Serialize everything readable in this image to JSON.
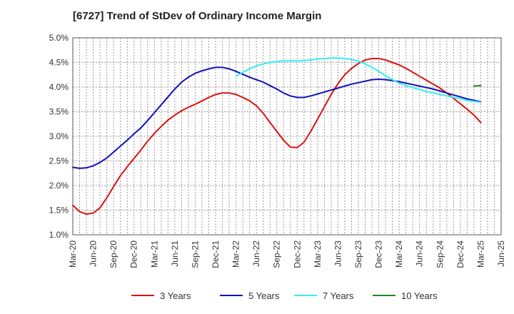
{
  "chart_data": {
    "type": "line",
    "title": "[6727]  Trend of StDev of Ordinary Income Margin",
    "xlabel": "",
    "ylabel": "",
    "ylim": [
      1.0,
      5.0
    ],
    "y_ticks": [
      "1.0%",
      "1.5%",
      "2.0%",
      "2.5%",
      "3.0%",
      "3.5%",
      "4.0%",
      "4.5%",
      "5.0%"
    ],
    "x_ticks": [
      "Mar-20",
      "Jun-20",
      "Sep-20",
      "Dec-20",
      "Mar-21",
      "Jun-21",
      "Sep-21",
      "Dec-21",
      "Mar-22",
      "Jun-22",
      "Sep-22",
      "Dec-22",
      "Mar-23",
      "Jun-23",
      "Sep-23",
      "Dec-23",
      "Mar-24",
      "Jun-24",
      "Sep-24",
      "Dec-24",
      "Mar-25",
      "Jun-25"
    ],
    "grid": true,
    "legend_position": "bottom",
    "series": [
      {
        "name": "3 Years",
        "color": "#dd1111",
        "points": [
          [
            "Mar-20",
            1.6
          ],
          [
            "Apr-20",
            1.47
          ],
          [
            "May-20",
            1.42
          ],
          [
            "Jun-20",
            1.44
          ],
          [
            "Jul-20",
            1.55
          ],
          [
            "Aug-20",
            1.75
          ],
          [
            "Sep-20",
            1.98
          ],
          [
            "Oct-20",
            2.2
          ],
          [
            "Nov-20",
            2.38
          ],
          [
            "Dec-20",
            2.55
          ],
          [
            "Jan-21",
            2.72
          ],
          [
            "Feb-21",
            2.9
          ],
          [
            "Mar-21",
            3.06
          ],
          [
            "Apr-21",
            3.2
          ],
          [
            "May-21",
            3.33
          ],
          [
            "Jun-21",
            3.43
          ],
          [
            "Jul-21",
            3.52
          ],
          [
            "Aug-21",
            3.59
          ],
          [
            "Sep-21",
            3.65
          ],
          [
            "Oct-21",
            3.72
          ],
          [
            "Nov-21",
            3.79
          ],
          [
            "Dec-21",
            3.85
          ],
          [
            "Jan-22",
            3.88
          ],
          [
            "Feb-22",
            3.88
          ],
          [
            "Mar-22",
            3.85
          ],
          [
            "Apr-22",
            3.79
          ],
          [
            "May-22",
            3.72
          ],
          [
            "Jun-22",
            3.62
          ],
          [
            "Jul-22",
            3.47
          ],
          [
            "Aug-22",
            3.28
          ],
          [
            "Sep-22",
            3.1
          ],
          [
            "Oct-22",
            2.92
          ],
          [
            "Nov-22",
            2.78
          ],
          [
            "Dec-22",
            2.77
          ],
          [
            "Jan-23",
            2.88
          ],
          [
            "Feb-23",
            3.1
          ],
          [
            "Mar-23",
            3.35
          ],
          [
            "Apr-23",
            3.6
          ],
          [
            "May-23",
            3.85
          ],
          [
            "Jun-23",
            4.07
          ],
          [
            "Jul-23",
            4.25
          ],
          [
            "Aug-23",
            4.38
          ],
          [
            "Sep-23",
            4.48
          ],
          [
            "Oct-23",
            4.55
          ],
          [
            "Nov-23",
            4.58
          ],
          [
            "Dec-23",
            4.58
          ],
          [
            "Jan-24",
            4.55
          ],
          [
            "Feb-24",
            4.5
          ],
          [
            "Mar-24",
            4.45
          ],
          [
            "Apr-24",
            4.38
          ],
          [
            "May-24",
            4.3
          ],
          [
            "Jun-24",
            4.22
          ],
          [
            "Jul-24",
            4.14
          ],
          [
            "Aug-24",
            4.06
          ],
          [
            "Sep-24",
            3.98
          ],
          [
            "Oct-24",
            3.88
          ],
          [
            "Nov-24",
            3.77
          ],
          [
            "Dec-24",
            3.66
          ],
          [
            "Jan-25",
            3.55
          ],
          [
            "Feb-25",
            3.43
          ],
          [
            "Mar-25",
            3.28
          ]
        ]
      },
      {
        "name": "5 Years",
        "color": "#1111bb",
        "points": [
          [
            "Mar-20",
            2.37
          ],
          [
            "Apr-20",
            2.35
          ],
          [
            "May-20",
            2.36
          ],
          [
            "Jun-20",
            2.4
          ],
          [
            "Jul-20",
            2.47
          ],
          [
            "Aug-20",
            2.56
          ],
          [
            "Sep-20",
            2.68
          ],
          [
            "Oct-20",
            2.8
          ],
          [
            "Nov-20",
            2.92
          ],
          [
            "Dec-20",
            3.05
          ],
          [
            "Jan-21",
            3.17
          ],
          [
            "Feb-21",
            3.32
          ],
          [
            "Mar-21",
            3.48
          ],
          [
            "Apr-21",
            3.64
          ],
          [
            "May-21",
            3.8
          ],
          [
            "Jun-21",
            3.96
          ],
          [
            "Jul-21",
            4.1
          ],
          [
            "Aug-21",
            4.2
          ],
          [
            "Sep-21",
            4.28
          ],
          [
            "Oct-21",
            4.33
          ],
          [
            "Nov-21",
            4.37
          ],
          [
            "Dec-21",
            4.4
          ],
          [
            "Jan-22",
            4.4
          ],
          [
            "Feb-22",
            4.37
          ],
          [
            "Mar-22",
            4.32
          ],
          [
            "Apr-22",
            4.26
          ],
          [
            "May-22",
            4.2
          ],
          [
            "Jun-22",
            4.15
          ],
          [
            "Jul-22",
            4.1
          ],
          [
            "Aug-22",
            4.03
          ],
          [
            "Sep-22",
            3.96
          ],
          [
            "Oct-22",
            3.88
          ],
          [
            "Nov-22",
            3.82
          ],
          [
            "Dec-22",
            3.79
          ],
          [
            "Jan-23",
            3.79
          ],
          [
            "Feb-23",
            3.82
          ],
          [
            "Mar-23",
            3.86
          ],
          [
            "Apr-23",
            3.9
          ],
          [
            "May-23",
            3.94
          ],
          [
            "Jun-23",
            3.98
          ],
          [
            "Jul-23",
            4.02
          ],
          [
            "Aug-23",
            4.06
          ],
          [
            "Sep-23",
            4.09
          ],
          [
            "Oct-23",
            4.12
          ],
          [
            "Nov-23",
            4.15
          ],
          [
            "Dec-23",
            4.16
          ],
          [
            "Jan-24",
            4.15
          ],
          [
            "Feb-24",
            4.13
          ],
          [
            "Mar-24",
            4.11
          ],
          [
            "Apr-24",
            4.08
          ],
          [
            "May-24",
            4.05
          ],
          [
            "Jun-24",
            4.02
          ],
          [
            "Jul-24",
            3.99
          ],
          [
            "Aug-24",
            3.96
          ],
          [
            "Sep-24",
            3.92
          ],
          [
            "Oct-24",
            3.88
          ],
          [
            "Nov-24",
            3.84
          ],
          [
            "Dec-24",
            3.8
          ],
          [
            "Jan-25",
            3.76
          ],
          [
            "Feb-25",
            3.73
          ],
          [
            "Mar-25",
            3.7
          ]
        ]
      },
      {
        "name": "7 Years",
        "color": "#33eeee",
        "points": [
          [
            "Mar-22",
            4.22
          ],
          [
            "Apr-22",
            4.3
          ],
          [
            "May-22",
            4.37
          ],
          [
            "Jun-22",
            4.43
          ],
          [
            "Jul-22",
            4.47
          ],
          [
            "Aug-22",
            4.5
          ],
          [
            "Sep-22",
            4.52
          ],
          [
            "Oct-22",
            4.53
          ],
          [
            "Nov-22",
            4.53
          ],
          [
            "Dec-22",
            4.53
          ],
          [
            "Jan-23",
            4.54
          ],
          [
            "Feb-23",
            4.55
          ],
          [
            "Mar-23",
            4.57
          ],
          [
            "Apr-23",
            4.58
          ],
          [
            "May-23",
            4.59
          ],
          [
            "Jun-23",
            4.59
          ],
          [
            "Jul-23",
            4.58
          ],
          [
            "Aug-23",
            4.56
          ],
          [
            "Sep-23",
            4.53
          ],
          [
            "Oct-23",
            4.47
          ],
          [
            "Nov-23",
            4.4
          ],
          [
            "Dec-23",
            4.32
          ],
          [
            "Jan-24",
            4.23
          ],
          [
            "Feb-24",
            4.15
          ],
          [
            "Mar-24",
            4.08
          ],
          [
            "Apr-24",
            4.03
          ],
          [
            "May-24",
            3.99
          ],
          [
            "Jun-24",
            3.95
          ],
          [
            "Jul-24",
            3.91
          ],
          [
            "Aug-24",
            3.88
          ],
          [
            "Sep-24",
            3.85
          ],
          [
            "Oct-24",
            3.82
          ],
          [
            "Nov-24",
            3.79
          ],
          [
            "Dec-24",
            3.76
          ],
          [
            "Jan-25",
            3.73
          ],
          [
            "Feb-25",
            3.71
          ],
          [
            "Mar-25",
            3.69
          ]
        ]
      },
      {
        "name": "10 Years",
        "color": "#228822",
        "points": [
          [
            "Feb-25",
            4.02
          ],
          [
            "Mar-25",
            4.03
          ]
        ]
      }
    ]
  }
}
